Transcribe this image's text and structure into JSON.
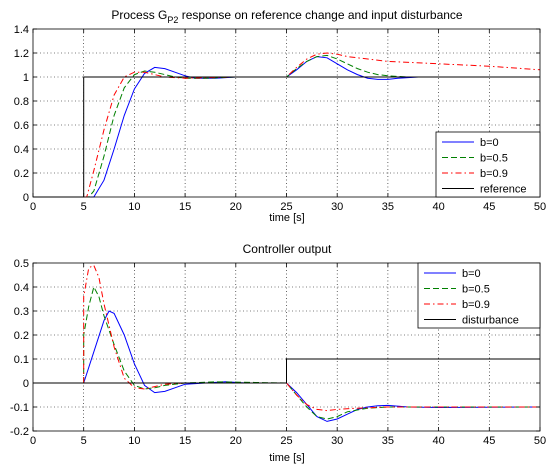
{
  "chart_data": [
    {
      "type": "line",
      "title_main": "Process G",
      "title_sub": "P2",
      "title_rest": " response on reference change and input disturbance",
      "xlabel": "time [s]",
      "ylabel": "",
      "xlim": [
        0,
        50
      ],
      "ylim": [
        0,
        1.4
      ],
      "x_ticks": [
        0,
        5,
        10,
        15,
        20,
        25,
        30,
        35,
        40,
        45,
        50
      ],
      "y_ticks": [
        0,
        0.2,
        0.4,
        0.6,
        0.8,
        1,
        1.2,
        1.4
      ],
      "x_tick_labels": [
        "0",
        "5",
        "10",
        "15",
        "20",
        "25",
        "30",
        "35",
        "40",
        "45",
        "50"
      ],
      "y_tick_labels": [
        "0",
        "0.2",
        "0.4",
        "0.6",
        "0.8",
        "1",
        "1.2",
        "1.4"
      ],
      "grid": true,
      "legend_position": "bottom-right",
      "series": [
        {
          "name": "b=0",
          "color": "#0000ff",
          "dash": "solid",
          "points": [
            [
              5,
              0
            ],
            [
              6,
              0
            ],
            [
              7,
              0.14
            ],
            [
              8,
              0.4
            ],
            [
              9,
              0.68
            ],
            [
              10,
              0.9
            ],
            [
              11,
              1.03
            ],
            [
              12,
              1.08
            ],
            [
              13,
              1.07
            ],
            [
              14,
              1.04
            ],
            [
              15,
              1.01
            ],
            [
              16,
              0.99
            ],
            [
              18,
              0.99
            ],
            [
              20,
              1.0
            ],
            [
              25,
              1.0
            ],
            [
              26,
              1.06
            ],
            [
              27,
              1.13
            ],
            [
              28,
              1.17
            ],
            [
              29,
              1.16
            ],
            [
              30,
              1.11
            ],
            [
              31,
              1.06
            ],
            [
              32,
              1.02
            ],
            [
              33,
              0.99
            ],
            [
              34,
              0.98
            ],
            [
              35,
              0.98
            ],
            [
              36,
              0.99
            ],
            [
              38,
              1.0
            ],
            [
              50,
              1.0
            ]
          ]
        },
        {
          "name": "b=0.5",
          "color": "#008000",
          "dash": "dashed",
          "points": [
            [
              5,
              0
            ],
            [
              5.5,
              0
            ],
            [
              6,
              0.05
            ],
            [
              7,
              0.34
            ],
            [
              8,
              0.68
            ],
            [
              9,
              0.91
            ],
            [
              10,
              1.02
            ],
            [
              11,
              1.05
            ],
            [
              12,
              1.04
            ],
            [
              13,
              1.02
            ],
            [
              14,
              1.0
            ],
            [
              15,
              0.99
            ],
            [
              17,
              0.99
            ],
            [
              20,
              1.0
            ],
            [
              25,
              1.0
            ],
            [
              26,
              1.07
            ],
            [
              27,
              1.13
            ],
            [
              28,
              1.17
            ],
            [
              29,
              1.18
            ],
            [
              30,
              1.15
            ],
            [
              31,
              1.11
            ],
            [
              32,
              1.07
            ],
            [
              33,
              1.04
            ],
            [
              34,
              1.02
            ],
            [
              35,
              1.01
            ],
            [
              37,
              1.0
            ],
            [
              40,
              1.0
            ],
            [
              50,
              1.0
            ]
          ]
        },
        {
          "name": "b=0.9",
          "color": "#ff0000",
          "dash": "dashdot",
          "points": [
            [
              5,
              0
            ],
            [
              5.3,
              0
            ],
            [
              6,
              0.22
            ],
            [
              7,
              0.56
            ],
            [
              8,
              0.85
            ],
            [
              9,
              1.0
            ],
            [
              10,
              1.04
            ],
            [
              11,
              1.04
            ],
            [
              12,
              1.02
            ],
            [
              13,
              1.0
            ],
            [
              15,
              0.99
            ],
            [
              20,
              1.0
            ],
            [
              25,
              1.0
            ],
            [
              26,
              1.08
            ],
            [
              27,
              1.15
            ],
            [
              28,
              1.19
            ],
            [
              29,
              1.2
            ],
            [
              30,
              1.19
            ],
            [
              31,
              1.17
            ],
            [
              32,
              1.16
            ],
            [
              35,
              1.13
            ],
            [
              40,
              1.11
            ],
            [
              45,
              1.09
            ],
            [
              50,
              1.06
            ]
          ]
        },
        {
          "name": "reference",
          "color": "#000000",
          "dash": "solid",
          "points": [
            [
              0,
              0
            ],
            [
              5,
              0
            ],
            [
              5,
              1
            ],
            [
              50,
              1
            ]
          ]
        }
      ]
    },
    {
      "type": "line",
      "title_main": "Controller output",
      "title_sub": "",
      "title_rest": "",
      "xlabel": "time [s]",
      "ylabel": "",
      "xlim": [
        0,
        50
      ],
      "ylim": [
        -0.2,
        0.5
      ],
      "x_ticks": [
        0,
        5,
        10,
        15,
        20,
        25,
        30,
        35,
        40,
        45,
        50
      ],
      "y_ticks": [
        -0.2,
        -0.1,
        0,
        0.1,
        0.2,
        0.3,
        0.4,
        0.5
      ],
      "x_tick_labels": [
        "0",
        "5",
        "10",
        "15",
        "20",
        "25",
        "30",
        "35",
        "40",
        "45",
        "50"
      ],
      "y_tick_labels": [
        "-0.2",
        "-0.1",
        "0",
        "0.1",
        "0.2",
        "0.3",
        "0.4",
        "0.5"
      ],
      "grid": true,
      "legend_position": "top-right",
      "series": [
        {
          "name": "b=0",
          "color": "#0000ff",
          "dash": "solid",
          "points": [
            [
              5,
              0
            ],
            [
              6,
              0.13
            ],
            [
              7,
              0.26
            ],
            [
              7.5,
              0.3
            ],
            [
              8,
              0.29
            ],
            [
              9,
              0.2
            ],
            [
              10,
              0.08
            ],
            [
              11,
              -0.01
            ],
            [
              12,
              -0.04
            ],
            [
              13,
              -0.035
            ],
            [
              14,
              -0.02
            ],
            [
              15,
              -0.005
            ],
            [
              17,
              0.0
            ],
            [
              19,
              0.005
            ],
            [
              21,
              0.0
            ],
            [
              25,
              0
            ],
            [
              26,
              -0.04
            ],
            [
              27,
              -0.09
            ],
            [
              28,
              -0.14
            ],
            [
              29,
              -0.16
            ],
            [
              30,
              -0.15
            ],
            [
              31,
              -0.13
            ],
            [
              32,
              -0.11
            ],
            [
              33,
              -0.1
            ],
            [
              34,
              -0.095
            ],
            [
              35,
              -0.093
            ],
            [
              37,
              -0.1
            ],
            [
              40,
              -0.102
            ],
            [
              50,
              -0.1
            ]
          ]
        },
        {
          "name": "b=0.5",
          "color": "#008000",
          "dash": "dashed",
          "points": [
            [
              5,
              0
            ],
            [
              5,
              0.2
            ],
            [
              5.5,
              0.32
            ],
            [
              6,
              0.4
            ],
            [
              6.5,
              0.36
            ],
            [
              7,
              0.28
            ],
            [
              8,
              0.16
            ],
            [
              9,
              0.05
            ],
            [
              10,
              -0.01
            ],
            [
              11,
              -0.025
            ],
            [
              12,
              -0.02
            ],
            [
              13,
              -0.01
            ],
            [
              15,
              0.0
            ],
            [
              18,
              0.005
            ],
            [
              25,
              0
            ],
            [
              26,
              -0.05
            ],
            [
              27,
              -0.1
            ],
            [
              28,
              -0.14
            ],
            [
              29,
              -0.15
            ],
            [
              30,
              -0.14
            ],
            [
              31,
              -0.12
            ],
            [
              33,
              -0.105
            ],
            [
              35,
              -0.1
            ],
            [
              38,
              -0.1
            ],
            [
              50,
              -0.1
            ]
          ]
        },
        {
          "name": "b=0.9",
          "color": "#ff0000",
          "dash": "dashdot",
          "points": [
            [
              5,
              0
            ],
            [
              5,
              0.36
            ],
            [
              5.5,
              0.48
            ],
            [
              6,
              0.49
            ],
            [
              6.5,
              0.44
            ],
            [
              7,
              0.33
            ],
            [
              8,
              0.15
            ],
            [
              9,
              0.02
            ],
            [
              10,
              -0.02
            ],
            [
              11,
              -0.025
            ],
            [
              12,
              -0.015
            ],
            [
              13,
              -0.005
            ],
            [
              15,
              0.0
            ],
            [
              25,
              0
            ],
            [
              26,
              -0.05
            ],
            [
              27,
              -0.09
            ],
            [
              28,
              -0.11
            ],
            [
              29,
              -0.115
            ],
            [
              30,
              -0.11
            ],
            [
              32,
              -0.105
            ],
            [
              35,
              -0.1
            ],
            [
              40,
              -0.1
            ],
            [
              50,
              -0.1
            ]
          ]
        },
        {
          "name": "disturbance",
          "color": "#000000",
          "dash": "solid",
          "points": [
            [
              0,
              0
            ],
            [
              25,
              0
            ],
            [
              25,
              0.1
            ],
            [
              50,
              0.1
            ]
          ]
        }
      ]
    }
  ]
}
